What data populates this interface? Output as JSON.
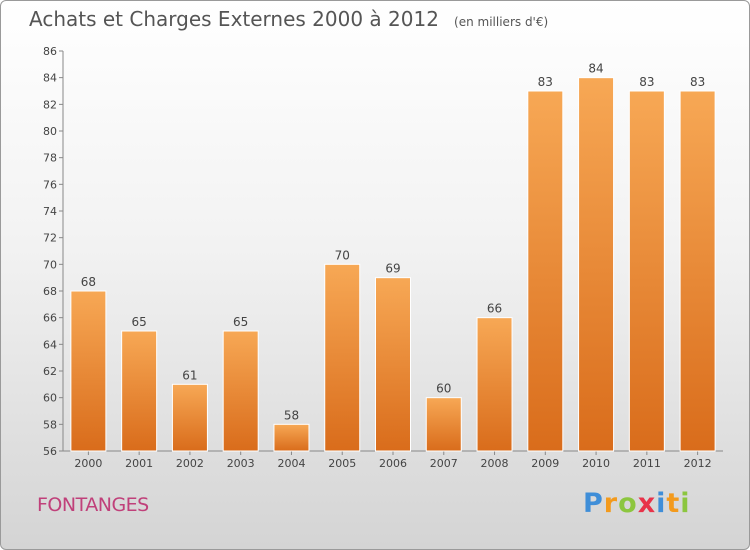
{
  "title": "Achats et Charges Externes 2000 à 2012",
  "unit": "(en milliers d'€)",
  "commune": "FONTANGES",
  "brand": {
    "letters": [
      {
        "ch": "P",
        "color": "#3f8ed8"
      },
      {
        "ch": "r",
        "color": "#f39a1c"
      },
      {
        "ch": "o",
        "color": "#8cc63f"
      },
      {
        "ch": "x",
        "color": "#e8334a"
      },
      {
        "ch": "i",
        "color": "#3f8ed8"
      },
      {
        "ch": "t",
        "color": "#f39a1c"
      },
      {
        "ch": "i",
        "color": "#8cc63f"
      }
    ]
  },
  "chart_data": {
    "type": "bar",
    "title": "Achats et Charges Externes 2000 à 2012",
    "subtitle": "(en milliers d'€)",
    "categories": [
      "2000",
      "2001",
      "2002",
      "2003",
      "2004",
      "2005",
      "2006",
      "2007",
      "2008",
      "2009",
      "2010",
      "2011",
      "2012"
    ],
    "values": [
      68,
      65,
      61,
      65,
      58,
      70,
      69,
      60,
      66,
      83,
      84,
      83,
      83
    ],
    "ylim": [
      56,
      86
    ],
    "yticks": [
      56,
      58,
      60,
      62,
      64,
      66,
      68,
      70,
      72,
      74,
      76,
      78,
      80,
      82,
      84,
      86
    ],
    "grid": false,
    "bar_color": "#f0913a"
  }
}
